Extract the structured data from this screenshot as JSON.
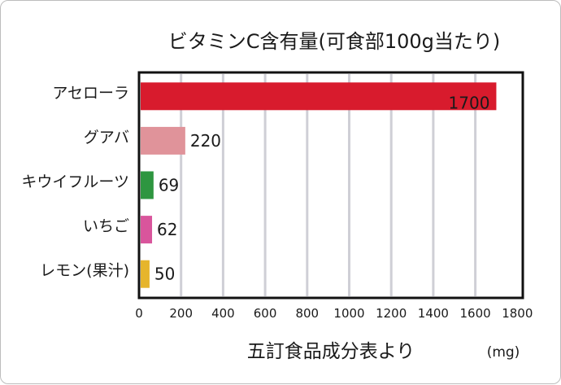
{
  "chart_data": {
    "type": "bar",
    "orientation": "horizontal",
    "title": "ビタミンC含有量(可食部100g当たり)",
    "categories": [
      "アセローラ",
      "グアバ",
      "キウイフルーツ",
      "いちご",
      "レモン(果汁)"
    ],
    "values": [
      1700,
      220,
      69,
      62,
      50
    ],
    "value_labels": [
      "1700",
      "220",
      "69",
      "62",
      "50"
    ],
    "colors": [
      "#d81b2d",
      "#e0939a",
      "#2e9640",
      "#d9559c",
      "#e6b52c"
    ],
    "xlim": [
      0,
      1800
    ],
    "xticks": [
      0,
      200,
      400,
      600,
      800,
      1000,
      1200,
      1400,
      1600,
      1800
    ],
    "xtick_labels": [
      "0",
      "200",
      "400",
      "600",
      "800",
      "1000",
      "1200",
      "1400",
      "1600",
      "1800"
    ],
    "grid": true,
    "legend": "none"
  },
  "footer": {
    "source": "五訂食品成分表より",
    "unit": "(mg)"
  }
}
